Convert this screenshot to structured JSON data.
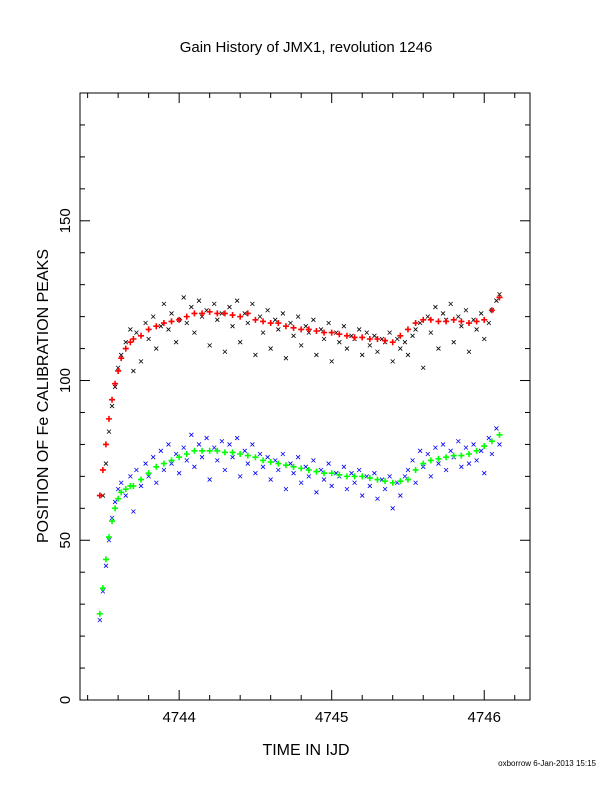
{
  "chart_data": {
    "type": "scatter",
    "title": "Gain History of JMX1, revolution 1246",
    "xlabel": "TIME IN IJD",
    "ylabel": "POSITION OF Fe CALIBRATION PEAKS",
    "xlim": [
      4743.35,
      4746.3
    ],
    "ylim": [
      0,
      190
    ],
    "xticks": [
      4744,
      4745,
      4746
    ],
    "yticks": [
      0,
      50,
      100,
      150
    ],
    "grid": false,
    "legend": "none",
    "footer": "oxborrow  6-Jan-2013 15:15",
    "series": [
      {
        "color": "#000000",
        "marker": "x",
        "x": [
          4743.5,
          4743.52,
          4743.54,
          4743.56,
          4743.58,
          4743.6,
          4743.62,
          4743.65,
          4743.68,
          4743.7,
          4743.72,
          4743.75,
          4743.78,
          4743.8,
          4743.83,
          4743.85,
          4743.88,
          4743.9,
          4743.93,
          4743.95,
          4743.98,
          4744.0,
          4744.03,
          4744.05,
          4744.08,
          4744.1,
          4744.13,
          4744.15,
          4744.18,
          4744.2,
          4744.23,
          4744.25,
          4744.28,
          4744.3,
          4744.33,
          4744.35,
          4744.38,
          4744.4,
          4744.43,
          4744.45,
          4744.48,
          4744.5,
          4744.53,
          4744.55,
          4744.58,
          4744.6,
          4744.63,
          4744.65,
          4744.68,
          4744.7,
          4744.73,
          4744.75,
          4744.78,
          4744.8,
          4744.83,
          4744.85,
          4744.88,
          4744.9,
          4744.93,
          4744.95,
          4744.98,
          4745.0,
          4745.03,
          4745.05,
          4745.08,
          4745.1,
          4745.13,
          4745.15,
          4745.18,
          4745.2,
          4745.23,
          4745.25,
          4745.28,
          4745.3,
          4745.33,
          4745.35,
          4745.38,
          4745.4,
          4745.43,
          4745.45,
          4745.48,
          4745.5,
          4745.53,
          4745.55,
          4745.58,
          4745.6,
          4745.63,
          4745.65,
          4745.68,
          4745.7,
          4745.73,
          4745.75,
          4745.78,
          4745.8,
          4745.83,
          4745.85,
          4745.88,
          4745.9,
          4745.93,
          4745.95,
          4745.98,
          4746.0,
          4746.03,
          4746.05,
          4746.08,
          4746.1
        ],
        "y": [
          64,
          74,
          84,
          92,
          98,
          104,
          108,
          112,
          116,
          103,
          115,
          106,
          118,
          113,
          120,
          110,
          117,
          124,
          116,
          121,
          112,
          119,
          126,
          118,
          123,
          115,
          125,
          120,
          122,
          111,
          124,
          119,
          121,
          109,
          123,
          117,
          125,
          112,
          121,
          118,
          124,
          108,
          120,
          115,
          122,
          110,
          119,
          116,
          121,
          107,
          118,
          114,
          120,
          111,
          117,
          115,
          119,
          108,
          116,
          113,
          118,
          106,
          115,
          112,
          117,
          110,
          114,
          113,
          116,
          108,
          115,
          111,
          114,
          109,
          113,
          112,
          115,
          106,
          113,
          110,
          112,
          108,
          114,
          116,
          118,
          104,
          120,
          115,
          123,
          110,
          121,
          119,
          124,
          112,
          120,
          117,
          122,
          109,
          119,
          116,
          121,
          113,
          118,
          122,
          125,
          127
        ]
      },
      {
        "color": "#0000ff",
        "marker": "x",
        "x": [
          4743.48,
          4743.5,
          4743.52,
          4743.54,
          4743.56,
          4743.58,
          4743.6,
          4743.62,
          4743.65,
          4743.68,
          4743.7,
          4743.72,
          4743.75,
          4743.78,
          4743.8,
          4743.83,
          4743.85,
          4743.88,
          4743.9,
          4743.93,
          4743.95,
          4743.98,
          4744.0,
          4744.03,
          4744.05,
          4744.08,
          4744.1,
          4744.13,
          4744.15,
          4744.18,
          4744.2,
          4744.23,
          4744.25,
          4744.28,
          4744.3,
          4744.33,
          4744.35,
          4744.38,
          4744.4,
          4744.43,
          4744.45,
          4744.48,
          4744.5,
          4744.53,
          4744.55,
          4744.58,
          4744.6,
          4744.63,
          4744.65,
          4744.68,
          4744.7,
          4744.73,
          4744.75,
          4744.78,
          4744.8,
          4744.83,
          4744.85,
          4744.88,
          4744.9,
          4744.93,
          4744.95,
          4744.98,
          4745.0,
          4745.03,
          4745.05,
          4745.08,
          4745.1,
          4745.13,
          4745.15,
          4745.18,
          4745.2,
          4745.23,
          4745.25,
          4745.28,
          4745.3,
          4745.33,
          4745.35,
          4745.38,
          4745.4,
          4745.43,
          4745.45,
          4745.48,
          4745.5,
          4745.53,
          4745.55,
          4745.58,
          4745.6,
          4745.63,
          4745.65,
          4745.68,
          4745.7,
          4745.73,
          4745.75,
          4745.78,
          4745.8,
          4745.83,
          4745.85,
          4745.88,
          4745.9,
          4745.93,
          4745.95,
          4745.98,
          4746.0,
          4746.03,
          4746.05,
          4746.08,
          4746.1
        ],
        "y": [
          25,
          34,
          42,
          50,
          57,
          62,
          66,
          68,
          64,
          70,
          59,
          72,
          67,
          74,
          70,
          76,
          68,
          78,
          72,
          80,
          74,
          77,
          71,
          79,
          75,
          83,
          73,
          80,
          76,
          82,
          69,
          79,
          75,
          81,
          72,
          80,
          76,
          82,
          70,
          78,
          74,
          80,
          71,
          77,
          73,
          76,
          69,
          75,
          72,
          77,
          66,
          74,
          71,
          76,
          68,
          73,
          70,
          75,
          65,
          72,
          69,
          74,
          67,
          71,
          70,
          73,
          66,
          71,
          68,
          72,
          64,
          70,
          67,
          71,
          63,
          69,
          66,
          70,
          60,
          68,
          64,
          70,
          72,
          75,
          68,
          78,
          73,
          77,
          70,
          79,
          74,
          80,
          72,
          78,
          76,
          81,
          73,
          79,
          74,
          80,
          75,
          78,
          71,
          82,
          77,
          85,
          80
        ]
      },
      {
        "color": "#ff0000",
        "marker": "+",
        "x": [
          4743.48,
          4743.5,
          4743.52,
          4743.54,
          4743.56,
          4743.58,
          4743.6,
          4743.62,
          4743.65,
          4743.68,
          4743.7,
          4743.75,
          4743.8,
          4743.85,
          4743.9,
          4743.95,
          4744.0,
          4744.05,
          4744.1,
          4744.15,
          4744.2,
          4744.25,
          4744.3,
          4744.35,
          4744.4,
          4744.45,
          4744.5,
          4744.55,
          4744.6,
          4744.65,
          4744.7,
          4744.75,
          4744.8,
          4744.85,
          4744.9,
          4744.95,
          4745.0,
          4745.05,
          4745.1,
          4745.15,
          4745.2,
          4745.25,
          4745.3,
          4745.35,
          4745.4,
          4745.45,
          4745.5,
          4745.55,
          4745.6,
          4745.65,
          4745.7,
          4745.75,
          4745.8,
          4745.85,
          4745.9,
          4745.95,
          4746.0,
          4746.05,
          4746.1
        ],
        "y": [
          64,
          72,
          80,
          88,
          94,
          99,
          103,
          107,
          110,
          112,
          113,
          114,
          116,
          117,
          118,
          118.5,
          119,
          120,
          121,
          121,
          121.5,
          121,
          121,
          120.5,
          120,
          121,
          119,
          118.5,
          118,
          118,
          117,
          116.5,
          116,
          116,
          115.5,
          115,
          115,
          114.5,
          114,
          113.5,
          113.5,
          113,
          113,
          112.5,
          112,
          114,
          116,
          118,
          119,
          119,
          118.5,
          118.5,
          119,
          118.5,
          118,
          118.5,
          119,
          122,
          126
        ]
      },
      {
        "color": "#00ff00",
        "marker": "+",
        "x": [
          4743.48,
          4743.5,
          4743.52,
          4743.54,
          4743.56,
          4743.58,
          4743.6,
          4743.62,
          4743.65,
          4743.68,
          4743.7,
          4743.75,
          4743.8,
          4743.85,
          4743.9,
          4743.95,
          4744.0,
          4744.05,
          4744.1,
          4744.15,
          4744.2,
          4744.25,
          4744.3,
          4744.35,
          4744.4,
          4744.45,
          4744.5,
          4744.55,
          4744.6,
          4744.65,
          4744.7,
          4744.75,
          4744.8,
          4744.85,
          4744.9,
          4744.95,
          4745.0,
          4745.05,
          4745.1,
          4745.15,
          4745.2,
          4745.25,
          4745.3,
          4745.35,
          4745.4,
          4745.45,
          4745.5,
          4745.55,
          4745.6,
          4745.65,
          4745.7,
          4745.75,
          4745.8,
          4745.85,
          4745.9,
          4745.95,
          4746.0,
          4746.05,
          4746.1
        ],
        "y": [
          27,
          35,
          44,
          51,
          56,
          60,
          63,
          65,
          66,
          67,
          67,
          69,
          71,
          73,
          74,
          75,
          76,
          77,
          78,
          78,
          78,
          78,
          77.5,
          77.5,
          77,
          76.5,
          76,
          75,
          74.5,
          74,
          73.5,
          73,
          72.5,
          72,
          71.5,
          71,
          71,
          70.5,
          70,
          70,
          70,
          69.5,
          69,
          68.5,
          68,
          68.5,
          69,
          72,
          74,
          75,
          75.5,
          76,
          76.5,
          76.5,
          77,
          78,
          79.5,
          81,
          83
        ]
      }
    ]
  }
}
